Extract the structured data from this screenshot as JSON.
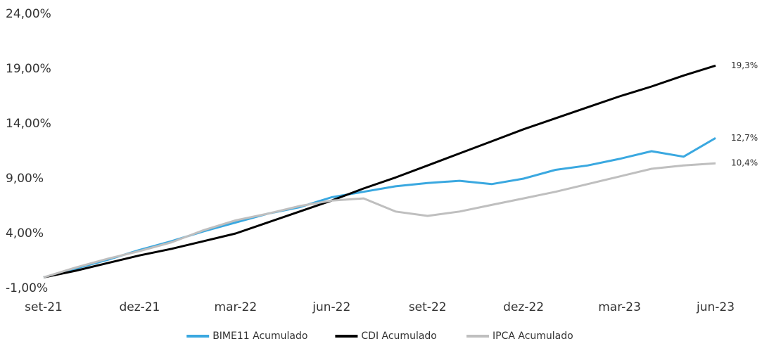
{
  "chart_data": {
    "type": "line",
    "categories": [
      "set-21",
      null,
      null,
      "dez-21",
      null,
      null,
      "mar-22",
      null,
      null,
      "jun-22",
      null,
      null,
      "set-22",
      null,
      null,
      "dez-22",
      null,
      null,
      "mar-23",
      null,
      null,
      "jun-23"
    ],
    "series": [
      {
        "name": "BIME11 Acumulado",
        "color": "#3aa8e0",
        "values": [
          0,
          0.8,
          1.6,
          2.5,
          3.3,
          4.2,
          5.0,
          5.8,
          6.4,
          7.3,
          7.8,
          8.3,
          8.6,
          8.8,
          8.5,
          9.0,
          9.8,
          10.2,
          10.8,
          11.5,
          11.0,
          12.7
        ],
        "value_labels": [
          null,
          null,
          null,
          null,
          null,
          null,
          null,
          null,
          null,
          null,
          null,
          null,
          null,
          null,
          null,
          null,
          null,
          null,
          null,
          null,
          null,
          "12,7%"
        ]
      },
      {
        "name": "CDI Acumulado",
        "color": "#000000",
        "values": [
          0,
          0.6,
          1.3,
          2.0,
          2.6,
          3.3,
          4.0,
          5.0,
          6.0,
          7.0,
          8.1,
          9.1,
          10.2,
          11.3,
          12.4,
          13.5,
          14.5,
          15.5,
          16.5,
          17.4,
          18.4,
          19.3
        ],
        "value_labels": [
          null,
          null,
          null,
          null,
          null,
          null,
          null,
          null,
          null,
          null,
          null,
          null,
          null,
          null,
          null,
          null,
          null,
          null,
          null,
          null,
          null,
          "19,3%"
        ]
      },
      {
        "name": "IPCA Acumulado",
        "color": "#bfbfbf",
        "values": [
          0,
          0.9,
          1.7,
          2.4,
          3.2,
          4.3,
          5.2,
          5.8,
          6.5,
          7.0,
          7.2,
          6.0,
          5.6,
          6.0,
          6.6,
          7.2,
          7.8,
          8.5,
          9.2,
          9.9,
          10.2,
          10.4
        ],
        "value_labels": [
          null,
          null,
          null,
          null,
          null,
          null,
          null,
          null,
          null,
          null,
          null,
          null,
          null,
          null,
          null,
          null,
          null,
          null,
          null,
          null,
          null,
          "10,4%"
        ]
      }
    ],
    "ylim": [
      -1,
      24
    ],
    "yticks": [
      {
        "value": -1,
        "label": "-1,00%"
      },
      {
        "value": 4,
        "label": "4,00%"
      },
      {
        "value": 9,
        "label": "9,00%"
      },
      {
        "value": 14,
        "label": "14,00%"
      },
      {
        "value": 19,
        "label": "19,00%"
      },
      {
        "value": 24,
        "label": "24,00%"
      }
    ],
    "legend": "bottom"
  }
}
